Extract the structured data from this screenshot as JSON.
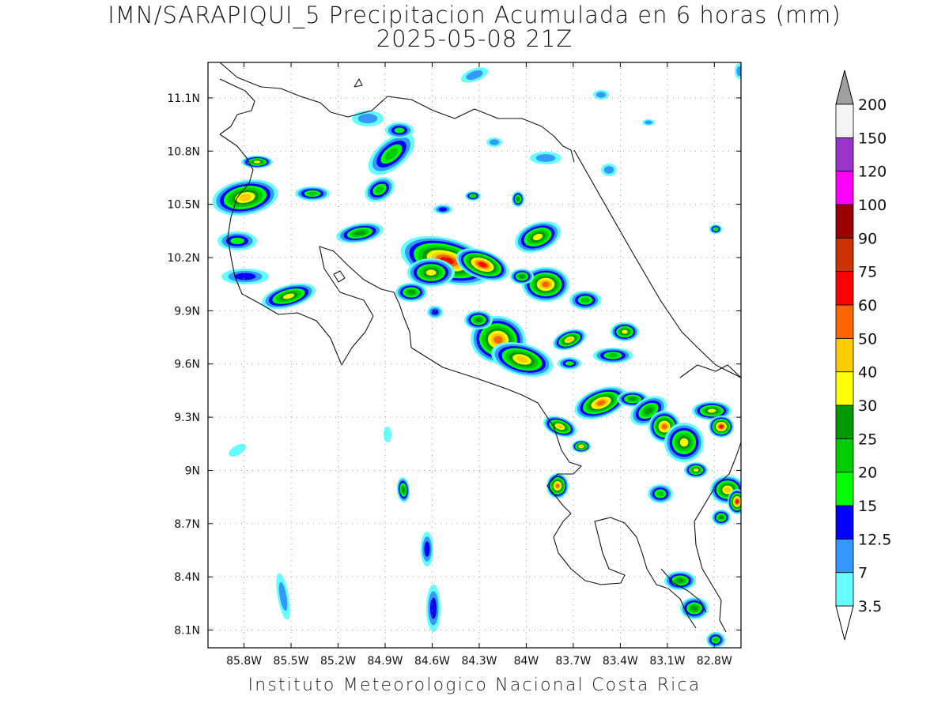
{
  "title": {
    "line1": "IMN/SARAPIQUI_5 Precipitacion Acumulada en 6 horas (mm)",
    "line2": "2025-05-08 21Z"
  },
  "footer": "Instituto Meteorologico Nacional Costa Rica",
  "map": {
    "lon_range": [
      -86.03,
      -82.63
    ],
    "lat_range": [
      8.0,
      11.3
    ],
    "lat_ticks": [
      "11.1N",
      "10.8N",
      "10.5N",
      "10.2N",
      "9.9N",
      "9.6N",
      "9.3N",
      "9N",
      "8.7N",
      "8.4N",
      "8.1N"
    ],
    "lat_tick_values": [
      11.1,
      10.8,
      10.5,
      10.2,
      9.9,
      9.6,
      9.3,
      9.0,
      8.7,
      8.4,
      8.1
    ],
    "lon_ticks": [
      "85.8W",
      "85.5W",
      "85.2W",
      "84.9W",
      "84.6W",
      "84.3W",
      "84W",
      "83.7W",
      "83.4W",
      "83.1W",
      "82.8W"
    ],
    "lon_tick_values": [
      -85.8,
      -85.5,
      -85.2,
      -84.9,
      -84.6,
      -84.3,
      -84.0,
      -83.7,
      -83.4,
      -83.1,
      -82.8
    ],
    "grid": true
  },
  "colorbar": {
    "labels": [
      "3.5",
      "7",
      "12.5",
      "15",
      "20",
      "25",
      "30",
      "40",
      "50",
      "60",
      "75",
      "90",
      "100",
      "120",
      "150",
      "200"
    ],
    "colors": [
      "#66ffff",
      "#3399ff",
      "#0000ff",
      "#00ff00",
      "#00cc00",
      "#009900",
      "#ffff00",
      "#ffcc00",
      "#ff6600",
      "#ff0000",
      "#cc3300",
      "#990000",
      "#ff00ff",
      "#9933cc",
      "#f5f5f5"
    ],
    "top_arrow_color": "#a0a0a0",
    "bottom_arrow_color": "#ffffff"
  }
}
